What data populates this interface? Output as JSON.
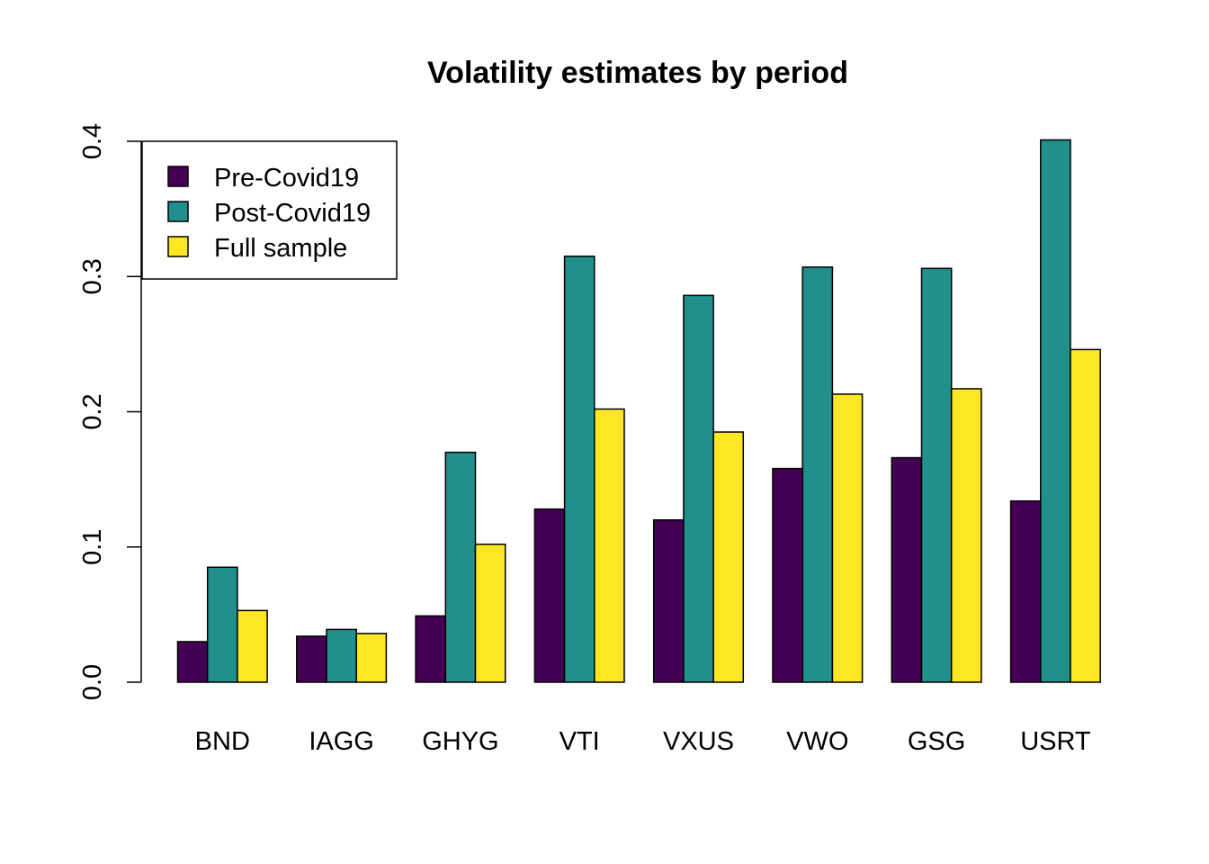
{
  "chart_data": {
    "type": "bar",
    "title": "Volatility  estimates by period",
    "xlabel": "",
    "ylabel": "",
    "categories": [
      "BND",
      "IAGG",
      "GHYG",
      "VTI",
      "VXUS",
      "VWO",
      "GSG",
      "USRT"
    ],
    "ylim": [
      0,
      0.4
    ],
    "yticks": [
      "0.0",
      "0.1",
      "0.2",
      "0.3",
      "0.4"
    ],
    "grid": false,
    "legend_position": "top-left",
    "series": [
      {
        "name": "Pre-Covid19",
        "color": "#440154",
        "values": [
          0.03,
          0.034,
          0.049,
          0.128,
          0.12,
          0.158,
          0.166,
          0.134
        ]
      },
      {
        "name": "Post-Covid19",
        "color": "#21908C",
        "values": [
          0.085,
          0.039,
          0.17,
          0.315,
          0.286,
          0.307,
          0.306,
          0.401
        ]
      },
      {
        "name": "Full sample",
        "color": "#FDE725",
        "values": [
          0.053,
          0.036,
          0.102,
          0.202,
          0.185,
          0.213,
          0.217,
          0.246
        ]
      }
    ]
  }
}
